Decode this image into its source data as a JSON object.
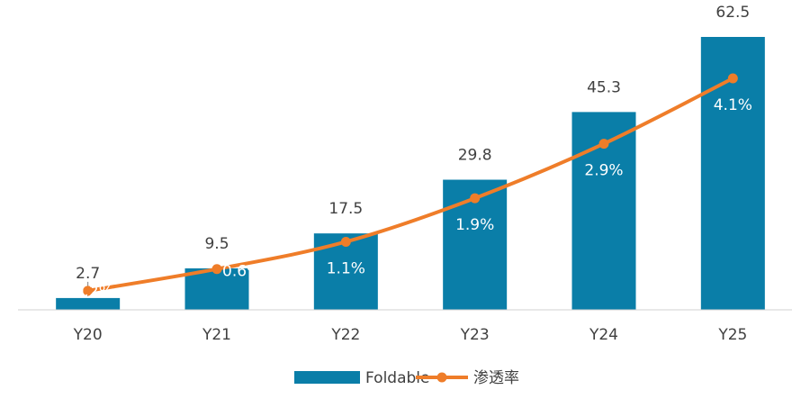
{
  "chart_data": {
    "type": "bar",
    "categories": [
      "Y20",
      "Y21",
      "Y22",
      "Y23",
      "Y24",
      "Y25"
    ],
    "series": [
      {
        "name": "Foldable",
        "type": "bar",
        "values": [
          2.7,
          9.5,
          17.5,
          29.8,
          45.3,
          62.5
        ],
        "labels": [
          "2.7",
          "9.5",
          "17.5",
          "29.8",
          "45.3",
          "62.5"
        ]
      },
      {
        "name": "渗透率",
        "type": "line",
        "values": [
          0.2,
          0.6,
          1.1,
          1.9,
          2.9,
          4.1
        ],
        "labels": [
          "0.2%",
          "0.6%",
          "1.1%",
          "1.9%",
          "2.9%",
          "4.1%"
        ]
      }
    ],
    "title": "",
    "xlabel": "",
    "ylabel": "",
    "ylim": [
      0,
      62.5
    ],
    "y2lim": [
      0,
      4.1
    ],
    "grid": false,
    "legend": "bottom-center",
    "colors": {
      "bar": "#0a7ea8",
      "line": "#ef7d29",
      "axis": "#d0d0d0",
      "text": "#404040"
    }
  }
}
